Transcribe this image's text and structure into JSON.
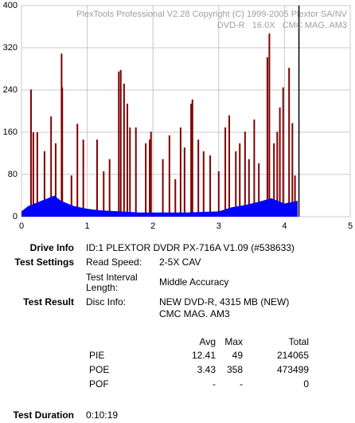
{
  "chart_data": {
    "type": "bar",
    "title": "PlexTools Professional V2.28 Copyright (C) 1999-2005 Plextor SA/NV",
    "subtitle": "DVD-R   16.0X   CMC MAG. AM3",
    "xlim": [
      0,
      5
    ],
    "xticks": [
      0,
      1,
      2,
      3,
      4,
      5
    ],
    "ylim": [
      0,
      400
    ],
    "yticks": [
      0,
      80,
      160,
      240,
      320,
      400
    ],
    "grid": true,
    "end_marker_x": 4.22,
    "series": [
      {
        "type": "bar",
        "color": "#800000",
        "x": [
          0.145,
          0.18,
          0.24,
          0.35,
          0.45,
          0.52,
          0.61,
          0.62,
          0.76,
          0.85,
          0.94,
          1.15,
          1.25,
          1.34,
          1.48,
          1.51,
          1.56,
          1.61,
          1.65,
          1.74,
          1.89,
          1.95,
          1.97,
          2.15,
          2.25,
          2.34,
          2.42,
          2.48,
          2.58,
          2.6,
          2.69,
          2.77,
          2.87,
          3.0,
          3.1,
          3.16,
          3.26,
          3.32,
          3.4,
          3.46,
          3.54,
          3.61,
          3.74,
          3.77,
          3.84,
          3.89,
          3.93,
          3.98,
          4.07,
          4.12,
          4.16
        ],
        "values": [
          241,
          160,
          160,
          124,
          190,
          139,
          309,
          245,
          78,
          176,
          146,
          146,
          86,
          109,
          275,
          278,
          252,
          214,
          169,
          169,
          139,
          146,
          161,
          109,
          154,
          71,
          169,
          131,
          214,
          222,
          146,
          124,
          116,
          86,
          169,
          192,
          124,
          139,
          161,
          109,
          184,
          101,
          302,
          347,
          139,
          161,
          207,
          245,
          282,
          177,
          78
        ]
      },
      {
        "type": "area",
        "color": "#0000ff",
        "x": [
          0,
          0.1,
          0.2,
          0.3,
          0.4,
          0.5,
          0.6,
          0.7,
          0.8,
          1.0,
          1.2,
          1.5,
          1.8,
          2.0,
          2.5,
          3.0,
          3.2,
          3.4,
          3.6,
          3.8,
          3.9,
          4.0,
          4.2
        ],
        "values": [
          10,
          20,
          25,
          30,
          35,
          40,
          30,
          25,
          20,
          15,
          12,
          10,
          8,
          8,
          8,
          10,
          18,
          22,
          28,
          35,
          30,
          25,
          30
        ]
      }
    ]
  },
  "info": {
    "drive_label": "Drive Info",
    "drive_value": "ID:1 PLEXTOR DVDR PX-716A V1.09 (#538633)",
    "settings_label": "Test Settings",
    "read_speed_label": "Read Speed:",
    "read_speed_value": "2-5X CAV",
    "interval_label": [
      "Test Interval",
      "Length:"
    ],
    "interval_value": "Middle Accuracy",
    "result_label": "Test Result",
    "disc_label": "Disc Info:",
    "disc_value": [
      "NEW DVD-R, 4315 MB (NEW)",
      "CMC MAG. AM3"
    ],
    "duration_label": "Test Duration",
    "duration_value": "0:10:19"
  },
  "table": {
    "header": [
      "Avg",
      "Max",
      "Total"
    ],
    "rows": [
      [
        "PIE",
        "12.41",
        "49",
        "214065"
      ],
      [
        "POE",
        "3.43",
        "358",
        "473499"
      ],
      [
        "POF",
        "-",
        "-",
        "0"
      ]
    ]
  }
}
